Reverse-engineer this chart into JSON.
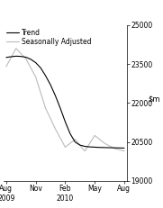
{
  "ylim": [
    19000,
    25000
  ],
  "yticks": [
    19000,
    20500,
    22000,
    23500,
    25000
  ],
  "xtick_labels": [
    "Aug\n2009",
    "Nov",
    "Feb\n2010",
    "May",
    "Aug"
  ],
  "xtick_positions": [
    0,
    3,
    6,
    9,
    12
  ],
  "trend_color": "#000000",
  "sa_color": "#bbbbbb",
  "trend_x": [
    0,
    0.5,
    1,
    1.5,
    2,
    2.5,
    3,
    3.5,
    4,
    4.5,
    5,
    5.5,
    6,
    6.5,
    7,
    7.5,
    8,
    8.5,
    9,
    9.5,
    10,
    10.5,
    11,
    11.5,
    12
  ],
  "trend_y": [
    23750,
    23780,
    23800,
    23790,
    23760,
    23680,
    23550,
    23350,
    23050,
    22700,
    22280,
    21800,
    21280,
    20820,
    20500,
    20380,
    20330,
    20310,
    20300,
    20290,
    20285,
    20280,
    20275,
    20270,
    20265
  ],
  "sa_x": [
    0,
    1,
    2,
    3,
    4,
    5,
    6,
    7,
    8,
    9,
    10,
    11,
    12
  ],
  "sa_y": [
    23400,
    24100,
    23700,
    23000,
    21800,
    21000,
    20300,
    20600,
    20150,
    20750,
    20450,
    20250,
    20150
  ],
  "legend_trend": "Trend",
  "legend_sa": "Seasonally Adjusted",
  "background_color": "#ffffff"
}
